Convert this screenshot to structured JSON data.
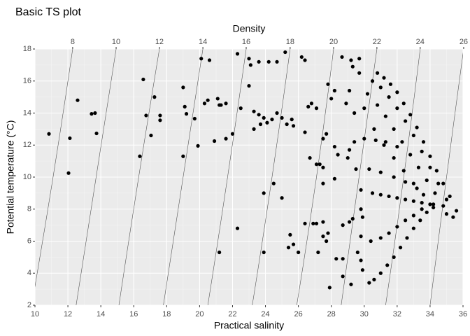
{
  "chart_data": {
    "type": "scatter",
    "title": "Basic TS plot",
    "x_label": "Practical salinity",
    "y_label": "Potential temperature (°C)",
    "top_label": "Density",
    "color": "#000000",
    "grid": true,
    "xlim": [
      10,
      36
    ],
    "ylim": [
      2,
      18
    ],
    "xticks": [
      10,
      12,
      14,
      16,
      18,
      20,
      22,
      24,
      26,
      28,
      30,
      32,
      34,
      36
    ],
    "yticks": [
      2,
      4,
      6,
      8,
      10,
      12,
      14,
      16,
      18
    ],
    "contours": [
      {
        "level": 8,
        "x": [
          12.29,
          11.1,
          9.8
        ],
        "y": [
          18,
          10,
          2
        ]
      },
      {
        "level": 10,
        "x": [
          14.93,
          13.7,
          12.5
        ],
        "y": [
          18,
          10,
          2
        ]
      },
      {
        "level": 12,
        "x": [
          17.56,
          16.3,
          15.1
        ],
        "y": [
          18,
          10,
          2
        ]
      },
      {
        "level": 14,
        "x": [
          20.2,
          19.0,
          17.8
        ],
        "y": [
          18,
          10,
          2
        ]
      },
      {
        "level": 16,
        "x": [
          22.83,
          21.7,
          20.5
        ],
        "y": [
          18,
          10,
          2
        ]
      },
      {
        "level": 18,
        "x": [
          25.5,
          24.4,
          23.2
        ],
        "y": [
          18,
          10,
          2
        ]
      },
      {
        "level": 20,
        "x": [
          28.14,
          27.1,
          25.9
        ],
        "y": [
          18,
          10,
          2
        ]
      },
      {
        "level": 22,
        "x": [
          30.77,
          29.7,
          28.6
        ],
        "y": [
          18,
          10,
          2
        ]
      },
      {
        "level": 24,
        "x": [
          33.4,
          32.4,
          31.3
        ],
        "y": [
          18,
          10,
          2
        ]
      },
      {
        "level": 26,
        "x": [
          36.04,
          35.0,
          34.0
        ],
        "y": [
          18,
          10,
          2
        ]
      }
    ],
    "x": [
      10.85,
      12.04,
      12.12,
      12.59,
      13.44,
      13.65,
      13.74,
      16.37,
      16.58,
      16.75,
      17.05,
      17.26,
      17.6,
      17.6,
      19.0,
      19.0,
      19.1,
      19.2,
      19.7,
      19.9,
      20.1,
      20.6,
      20.3,
      20.5,
      21.1,
      20.9,
      21.2,
      21.3,
      21.6,
      21.2,
      21.6,
      22.0,
      22.3,
      22.3,
      22.5,
      23.0,
      23.0,
      23.1,
      23.6,
      24.2,
      24.7,
      23.3,
      23.6,
      23.9,
      23.3,
      23.7,
      24.1,
      24.4,
      23.9,
      23.9,
      24.5,
      24.7,
      25.0,
      25.3,
      25.0,
      25.2,
      25.5,
      25.4,
      25.6,
      25.7,
      25.7,
      26.0,
      26.2,
      26.4,
      26.4,
      26.4,
      26.6,
      26.8,
      27.1,
      26.7,
      27.1,
      26.9,
      27.1,
      27.2,
      27.5,
      27.5,
      27.3,
      27.5,
      27.7,
      27.5,
      27.5,
      27.7,
      27.8,
      27.8,
      28.0,
      28.2,
      27.9,
      28.2,
      28.2,
      28.4,
      28.3,
      28.7,
      28.65,
      29.2,
      29.7,
      28.7,
      29.1,
      29.3,
      28.7,
      29.2,
      28.9,
      29.1,
      29.4,
      29.0,
      29.1,
      29.4,
      29.3,
      29.7,
      29.6,
      29.8,
      29.9,
      29.8,
      29.9,
      29.8,
      30.8,
      31.2,
      31.6,
      32.0,
      32.4,
      32.8,
      33.2,
      33.6,
      34.0,
      34.4,
      34.8,
      35.2,
      35.6,
      35.4,
      35.0,
      30.5,
      31.0,
      31.5,
      32.0,
      32.5,
      33.0,
      33.5,
      34.0,
      34.5,
      35.0,
      30.2,
      30.8,
      31.3,
      31.8,
      32.3,
      32.8,
      33.3,
      33.8,
      34.3,
      34.8,
      30.0,
      30.6,
      31.2,
      31.8,
      32.4,
      33.0,
      33.6,
      34.2,
      30.5,
      31.0,
      31.5,
      32.0,
      32.5,
      33.0,
      33.5,
      34.0,
      30.3,
      30.6,
      31.0,
      31.4,
      31.8,
      32.2,
      32.6,
      33.0,
      33.4,
      33.8,
      34.2,
      29.8,
      30.4,
      31.0,
      31.5,
      32.0,
      32.5,
      33.0,
      33.5,
      29.5,
      30.3,
      31.0,
      31.8,
      32.5,
      33.2,
      30.0,
      30.7,
      31.3,
      32.0
    ],
    "values": [
      12.7,
      10.25,
      12.43,
      14.8,
      13.95,
      14.0,
      12.73,
      11.3,
      16.1,
      13.85,
      12.6,
      15.0,
      13.85,
      13.55,
      11.3,
      15.6,
      14.4,
      13.95,
      13.65,
      11.95,
      17.4,
      17.3,
      14.6,
      14.8,
      14.9,
      12.25,
      14.5,
      14.5,
      14.6,
      5.3,
      12.4,
      12.7,
      17.7,
      6.8,
      14.3,
      17.4,
      15.7,
      17.0,
      17.2,
      17.2,
      17.2,
      14.1,
      13.9,
      13.7,
      13.0,
      13.3,
      13.4,
      13.6,
      9.0,
      5.3,
      9.6,
      14.0,
      13.7,
      13.3,
      8.7,
      17.8,
      6.4,
      5.6,
      13.6,
      13.2,
      5.8,
      5.3,
      17.5,
      17.3,
      12.8,
      7.1,
      14.4,
      14.6,
      14.3,
      11.2,
      10.8,
      7.1,
      7.1,
      5.3,
      6.3,
      7.2,
      10.8,
      12.4,
      12.7,
      9.6,
      10.6,
      6.0,
      6.5,
      15.8,
      14.9,
      15.4,
      3.1,
      9.9,
      11.9,
      11.4,
      4.9,
      4.9,
      17.5,
      17.3,
      17.4,
      7.0,
      7.2,
      7.4,
      3.8,
      3.3,
      14.6,
      15.4,
      14.0,
      11.2,
      11.7,
      12.2,
      16.9,
      16.5,
      5.3,
      4.8,
      4.2,
      8.0,
      7.5,
      9.2,
      16.5,
      16.2,
      15.8,
      15.3,
      14.6,
      13.9,
      13.1,
      12.2,
      11.3,
      10.4,
      9.6,
      8.8,
      7.9,
      7.5,
      7.7,
      16.0,
      15.6,
      15.0,
      14.3,
      13.5,
      12.6,
      11.6,
      10.6,
      9.6,
      8.6,
      15.2,
      14.5,
      13.8,
      13.0,
      12.2,
      11.4,
      10.6,
      9.8,
      9.0,
      8.2,
      14.3,
      13.0,
      12.0,
      11.2,
      10.4,
      9.6,
      8.9,
      8.3,
      9.0,
      8.9,
      8.8,
      8.7,
      8.6,
      8.5,
      8.4,
      8.3,
      3.4,
      3.6,
      4.0,
      4.5,
      5.0,
      5.6,
      6.2,
      6.8,
      7.3,
      7.8,
      8.1,
      6.3,
      6.0,
      6.2,
      6.5,
      6.9,
      7.3,
      7.6,
      8.0,
      10.5,
      10.5,
      10.3,
      10.0,
      9.7,
      9.3,
      12.4,
      12.3,
      12.2,
      11.9
    ]
  }
}
